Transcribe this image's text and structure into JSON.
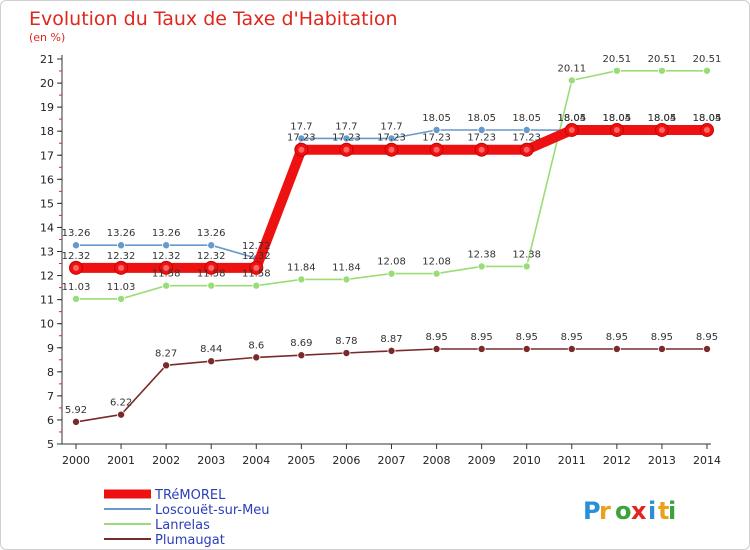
{
  "chart_data": {
    "type": "line",
    "title": "Evolution du Taux de Taxe d'Habitation",
    "subtitle": "(en %)",
    "x": [
      "2000",
      "2001",
      "2002",
      "2003",
      "2004",
      "2005",
      "2006",
      "2007",
      "2008",
      "2009",
      "2010",
      "2011",
      "2012",
      "2013",
      "2014"
    ],
    "ylim": [
      5,
      21
    ],
    "yticks": [
      5,
      6,
      7,
      8,
      9,
      10,
      11,
      12,
      13,
      14,
      15,
      16,
      17,
      18,
      19,
      20,
      21
    ],
    "grid": false,
    "legend_position": "bottom-left",
    "series": [
      {
        "name": "TRéMOREL",
        "color": "#ee1111",
        "values": [
          12.32,
          12.32,
          12.32,
          12.32,
          12.32,
          17.23,
          17.23,
          17.23,
          17.23,
          17.23,
          17.23,
          18.05,
          18.05,
          18.05,
          18.05
        ]
      },
      {
        "name": "Loscouët-sur-Meu",
        "color": "#6699cc",
        "values": [
          13.26,
          13.26,
          13.26,
          13.26,
          12.72,
          17.7,
          17.7,
          17.7,
          18.05,
          18.05,
          18.05,
          18.04,
          18.04,
          18.04,
          18.04
        ]
      },
      {
        "name": "Lanrelas",
        "color": "#99dd77",
        "values": [
          11.03,
          11.03,
          11.58,
          11.58,
          11.58,
          11.84,
          11.84,
          12.08,
          12.08,
          12.38,
          12.38,
          20.11,
          20.51,
          20.51,
          20.51
        ]
      },
      {
        "name": "Plumaugat",
        "color": "#7a2a2a",
        "values": [
          5.92,
          6.22,
          8.27,
          8.44,
          8.6,
          8.69,
          8.78,
          8.87,
          8.95,
          8.95,
          8.95,
          8.95,
          8.95,
          8.95,
          8.95
        ]
      }
    ],
    "data_labels": {
      "TRéMOREL": [
        "12.32",
        "12.32",
        "12.32",
        "12.32",
        "12.32",
        "17.23",
        "17.23",
        "17.23",
        "17.23",
        "17.23",
        "17.23",
        "18.05",
        "18.05",
        "18.05",
        "18.05"
      ],
      "Loscouët-sur-Meu": [
        "13.26",
        "13.26",
        "13.26",
        "13.26",
        "12.72",
        "17.7",
        "17.7",
        "17.7",
        "18.05",
        "18.05",
        "18.05",
        "18.04",
        "18.04",
        "18.04",
        "18.04"
      ],
      "Lanrelas": [
        "11.03",
        "11.03",
        "11.58",
        "11.58",
        "11.58",
        "11.84",
        "11.84",
        "12.08",
        "12.08",
        "12.38",
        "12.38",
        "20.11",
        "20.51",
        "20.51",
        "20.51"
      ],
      "Plumaugat": [
        "5.92",
        "6.22",
        "8.27",
        "8.44",
        "8.6",
        "8.69",
        "8.78",
        "8.87",
        "8.95",
        "8.95",
        "8.95",
        "8.95",
        "8.95",
        "8.95",
        "8.95"
      ]
    }
  },
  "logo": {
    "text": "Proxiti"
  }
}
